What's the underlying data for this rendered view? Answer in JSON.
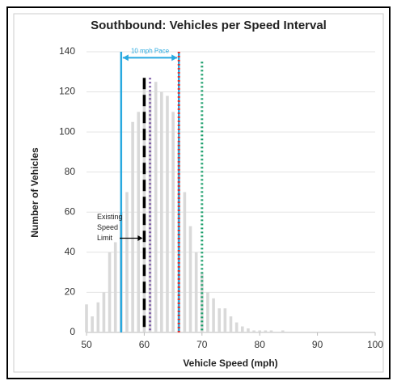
{
  "chart_data": {
    "type": "bar",
    "title": "Southbound: Vehicles per Speed Interval",
    "xlabel": "Vehicle Speed (mph)",
    "ylabel": "Number of Vehicles",
    "x": [
      50,
      51,
      52,
      53,
      54,
      55,
      56,
      57,
      58,
      59,
      60,
      61,
      62,
      63,
      64,
      65,
      66,
      67,
      68,
      69,
      70,
      71,
      72,
      73,
      74,
      75,
      76,
      77,
      78,
      79,
      80,
      81,
      82,
      83,
      84,
      85
    ],
    "values": [
      14,
      8,
      15,
      20,
      40,
      45,
      60,
      70,
      105,
      110,
      125,
      120,
      125,
      120,
      118,
      110,
      95,
      70,
      53,
      40,
      30,
      20,
      17,
      12,
      12,
      8,
      5,
      3,
      2,
      1,
      1,
      1,
      1,
      0,
      1,
      0
    ],
    "color": "#d9d9d9",
    "xlim": [
      50,
      100
    ],
    "xticks": [
      50,
      60,
      70,
      80,
      90,
      100
    ],
    "ylim": [
      0,
      140
    ],
    "yticks": [
      0,
      20,
      40,
      60,
      80,
      100,
      120,
      140
    ],
    "grid": true,
    "reference_lines": [
      {
        "x": 56,
        "top": 140,
        "color": "#29a9e0",
        "style": "solid"
      },
      {
        "x": 66,
        "top": 140,
        "color": "#29a9e0",
        "style": "solid"
      },
      {
        "x": 60,
        "top": 127,
        "color": "#000000",
        "style": "dashed"
      },
      {
        "x": 61,
        "top": 127,
        "color": "#7f5fa8",
        "style": "dotted"
      },
      {
        "x": 66,
        "top": 140,
        "color": "#e8302a",
        "style": "dotted"
      },
      {
        "x": 70,
        "top": 135,
        "color": "#1a9e6a",
        "style": "dotted"
      }
    ],
    "pace": {
      "label": "10 mph Pace",
      "from": 56,
      "to": 66,
      "y": 137,
      "color": "#29a9e0"
    },
    "speed_limit_note": {
      "lines": [
        "Existing",
        "Speed",
        "Limit"
      ],
      "arrow_y": 47
    }
  }
}
